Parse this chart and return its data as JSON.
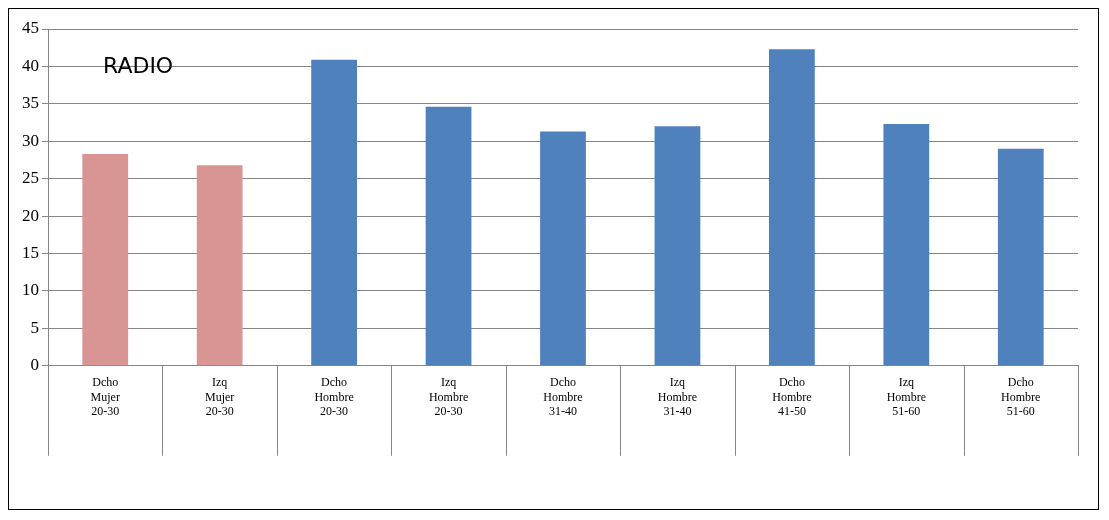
{
  "chart_data": {
    "type": "bar",
    "categories": [
      "Dcho\nMujer\n20-30",
      "Izq\nMujer\n20-30",
      "Dcho\nHombre\n20-30",
      "Izq\nHombre\n20-30",
      "Dcho\nHombre\n31-40",
      "Izq\nHombre\n31-40",
      "Dcho\nHombre\n41-50",
      "Izq\nHombre\n51-60",
      "Dcho\nHombre\n51-60"
    ],
    "values": [
      28.3,
      26.8,
      40.9,
      34.6,
      31.3,
      32.0,
      42.3,
      32.3,
      29.0
    ],
    "colors": [
      "#d99594",
      "#d99594",
      "#4f81bd",
      "#4f81bd",
      "#4f81bd",
      "#4f81bd",
      "#4f81bd",
      "#4f81bd",
      "#4f81bd"
    ],
    "ylim": [
      0,
      45
    ],
    "yticks": [
      0,
      5,
      10,
      15,
      20,
      25,
      30,
      35,
      40,
      45
    ],
    "grid": "y",
    "legend": false,
    "annotations": [
      "RADIO"
    ]
  }
}
